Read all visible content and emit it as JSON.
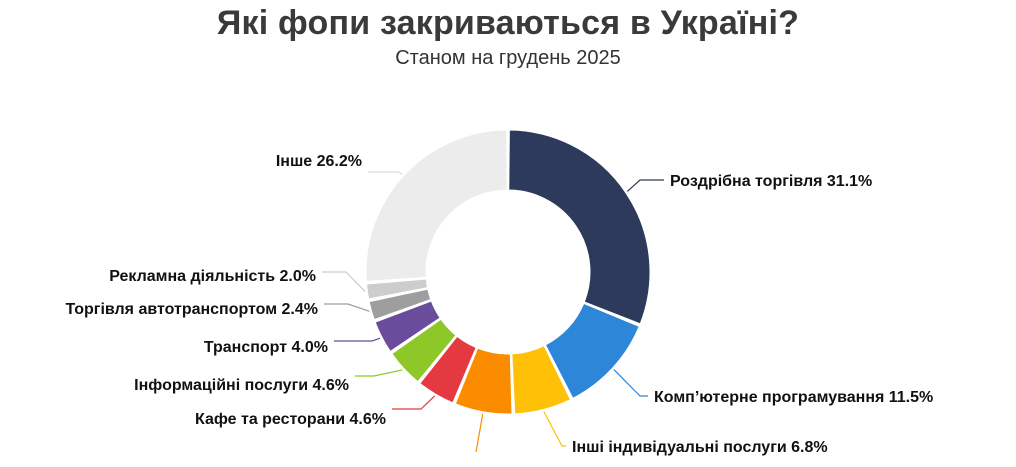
{
  "chart_data": {
    "type": "pie",
    "variant": "donut",
    "title": "Які фопи закриваються в Україні?",
    "subtitle": "Станом на грудень 2025",
    "value_suffix": "%",
    "slices": [
      {
        "label": "Роздрібна торгівля",
        "value": 31.1,
        "color": "#2e3a5b"
      },
      {
        "label": "Комп’ютерне програмування",
        "value": 11.5,
        "color": "#2e86d8"
      },
      {
        "label": "Інші індивідуальні послуги",
        "value": 6.8,
        "color": "#ffc107"
      },
      {
        "label": "",
        "value": 6.8,
        "color": "#fb8c00"
      },
      {
        "label": "Кафе та ресторани",
        "value": 4.6,
        "color": "#e53941"
      },
      {
        "label": "Інформаційні послуги",
        "value": 4.6,
        "color": "#8dc828"
      },
      {
        "label": "Транспорт",
        "value": 4.0,
        "color": "#6a4c9c"
      },
      {
        "label": "Торгівля автотранспортом",
        "value": 2.4,
        "color": "#9e9e9e"
      },
      {
        "label": "Рекламна діяльність",
        "value": 2.0,
        "color": "#cdcdcd"
      },
      {
        "label": "Інше",
        "value": 26.2,
        "color": "#ececec"
      }
    ]
  }
}
